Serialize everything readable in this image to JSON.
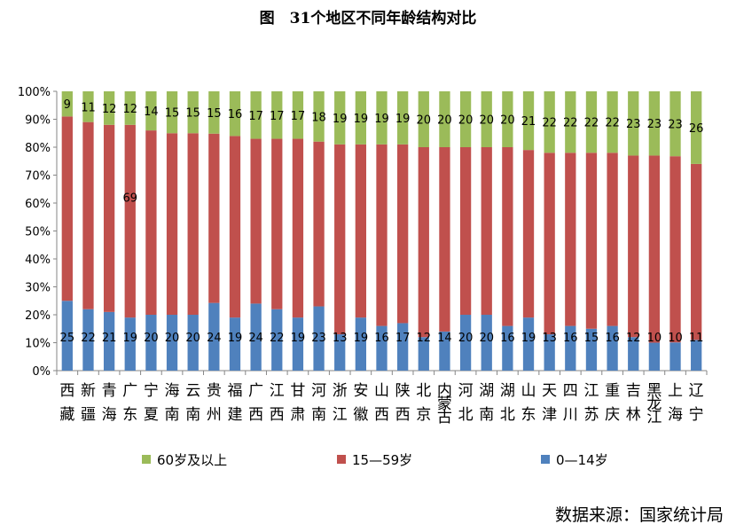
{
  "chart_data": {
    "type": "bar",
    "stacked": true,
    "percent": true,
    "title": "图　31个地区不同年龄结构对比",
    "categories": [
      "西藏",
      "新疆",
      "青海",
      "广东",
      "宁夏",
      "海南",
      "云南",
      "贵州",
      "福建",
      "广西",
      "江西",
      "甘肃",
      "河南",
      "浙江",
      "安徽",
      "山西",
      "陕西",
      "北京",
      "内蒙古",
      "河北",
      "湖南",
      "湖北",
      "山东",
      "天津",
      "四川",
      "江苏",
      "重庆",
      "吉林",
      "黑龙江",
      "上海",
      "辽宁"
    ],
    "series": [
      {
        "name": "0—14岁",
        "color": "#4F81BD",
        "values": [
          25,
          22,
          21,
          19,
          20,
          20,
          20,
          24,
          19,
          24,
          22,
          19,
          23,
          13,
          19,
          16,
          17,
          12,
          14,
          20,
          20,
          16,
          19,
          13,
          16,
          15,
          16,
          12,
          10,
          10,
          11
        ]
      },
      {
        "name": "15—59岁",
        "color": "#C0504D",
        "values": [
          66,
          67,
          67,
          69,
          66,
          65,
          65,
          60,
          65,
          59,
          61,
          64,
          59,
          68,
          62,
          65,
          64,
          68,
          66,
          60,
          60,
          64,
          60,
          65,
          62,
          63,
          62,
          65,
          67,
          66,
          63
        ]
      },
      {
        "name": "60岁及以上",
        "color": "#9BBB59",
        "values": [
          9,
          11,
          12,
          12,
          14,
          15,
          15,
          15,
          16,
          17,
          17,
          17,
          18,
          19,
          19,
          19,
          19,
          20,
          20,
          20,
          20,
          20,
          21,
          22,
          22,
          22,
          22,
          23,
          23,
          23,
          26
        ]
      }
    ],
    "shown_labels": {
      "0—14岁": [
        25,
        22,
        21,
        19,
        20,
        20,
        20,
        24,
        19,
        24,
        22,
        19,
        23,
        13,
        19,
        16,
        17,
        12,
        14,
        20,
        20,
        16,
        19,
        13,
        16,
        15,
        16,
        12,
        10,
        10,
        11
      ],
      "15—59岁": [
        null,
        null,
        null,
        69,
        null,
        null,
        null,
        null,
        null,
        null,
        null,
        null,
        null,
        null,
        null,
        null,
        null,
        null,
        null,
        null,
        null,
        null,
        null,
        null,
        null,
        null,
        null,
        null,
        null,
        null,
        null
      ],
      "60岁及以上": [
        9,
        11,
        12,
        12,
        14,
        15,
        15,
        15,
        16,
        17,
        17,
        17,
        18,
        19,
        19,
        19,
        19,
        20,
        20,
        20,
        20,
        20,
        21,
        22,
        22,
        22,
        22,
        23,
        23,
        23,
        26
      ]
    },
    "ylim": [
      0,
      100
    ],
    "y_ticks": [
      "0%",
      "10%",
      "20%",
      "30%",
      "40%",
      "50%",
      "60%",
      "70%",
      "80%",
      "90%",
      "100%"
    ],
    "legend_position": "bottom",
    "legend": [
      "60岁及以上",
      "15—59岁",
      "0—14岁"
    ],
    "grid": false
  },
  "source": "数据来源：国家统计局"
}
